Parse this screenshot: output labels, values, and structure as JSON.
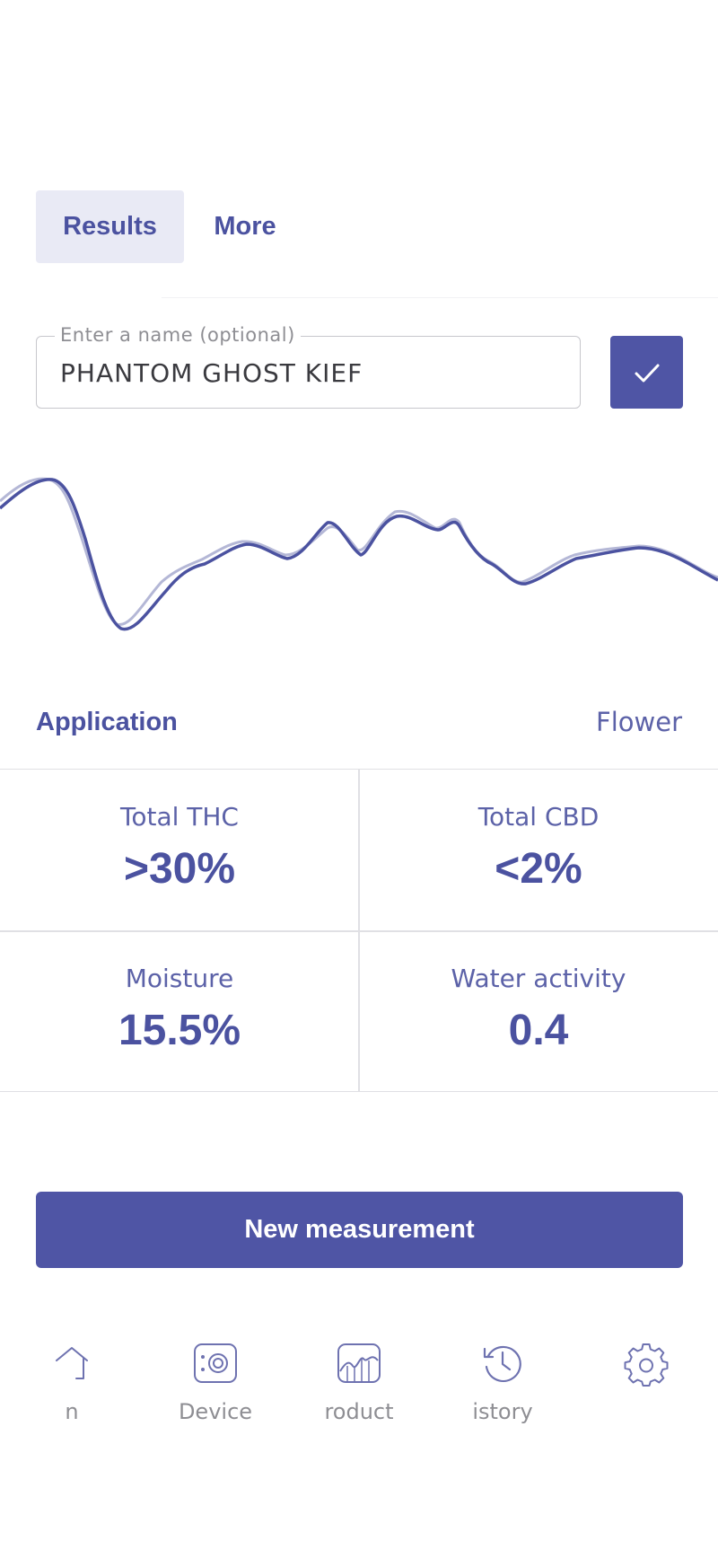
{
  "tabs": [
    {
      "label": "Results",
      "active": true
    },
    {
      "label": "More",
      "active": false
    }
  ],
  "name_field": {
    "legend": "Enter a name (optional)",
    "value": "PHANTOM GHOST KIEF"
  },
  "confirm_button": {
    "icon": "check-icon"
  },
  "application": {
    "label": "Application",
    "value": "Flower"
  },
  "results": [
    {
      "label": "Total THC",
      "value": ">30%"
    },
    {
      "label": "Total CBD",
      "value": "<2%"
    },
    {
      "label": "Moisture",
      "value": "15.5%"
    },
    {
      "label": "Water activity",
      "value": "0.4"
    }
  ],
  "primary_button": {
    "label": "New measurement"
  },
  "bottom_nav": [
    {
      "label": "n",
      "icon": "home-icon"
    },
    {
      "label": "Device",
      "icon": "device-icon"
    },
    {
      "label": "roduct",
      "icon": "products-chart-icon"
    },
    {
      "label": "istory",
      "icon": "history-icon"
    },
    {
      "label": "",
      "icon": "settings-gear-icon"
    }
  ],
  "colors": {
    "accent": "#4f55a5",
    "tab_active_bg": "#e9eaf5",
    "spectrum_line": "#4b52a0",
    "spectrum_reference": "#b4b7d6"
  }
}
